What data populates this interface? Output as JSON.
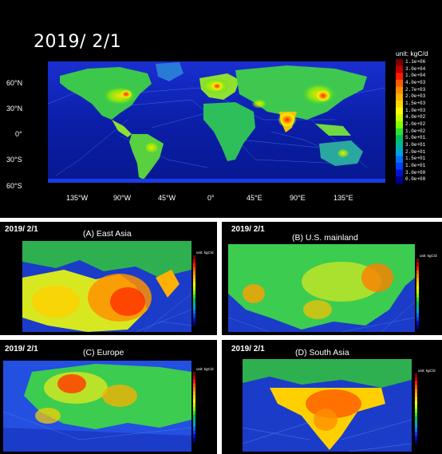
{
  "main": {
    "date": "2019/ 2/1",
    "unit": "unit: kgC/d",
    "lat_labels": [
      "60°N",
      "30°N",
      "0°",
      "30°S",
      "60°S"
    ],
    "lon_labels": [
      "135°W",
      "90°W",
      "45°W",
      "0°",
      "45°E",
      "90°E",
      "135°E"
    ],
    "colorbar": {
      "labels": [
        "1.1e+06",
        "3.0e+04",
        "1.0e+04",
        "4.0e+03",
        "2.7e+03",
        "2.0e+03",
        "1.5e+03",
        "1.0e+03",
        "4.0e+02",
        "2.0e+02",
        "1.0e+02",
        "5.0e+01",
        "3.0e+01",
        "2.0e+01",
        "1.5e+01",
        "1.0e+01",
        "3.0e+00",
        "0.0e+00"
      ],
      "colors": [
        "#7a0000",
        "#c40000",
        "#ff1a00",
        "#ff5a00",
        "#ff8c00",
        "#ffb400",
        "#ffd700",
        "#ffff00",
        "#c8ff00",
        "#80ff00",
        "#30e030",
        "#00c060",
        "#00b0a0",
        "#00a0e0",
        "#0070ff",
        "#0040ff",
        "#0010d0",
        "#00008a"
      ]
    }
  },
  "insets": [
    {
      "id": "a",
      "date": "2019/ 2/1",
      "title": "(A) East Asia",
      "unit": "unit: kgC/d"
    },
    {
      "id": "b",
      "date": "2019/ 2/1",
      "title": "(B) U.S. mainland",
      "unit": "unit: kgC/d"
    },
    {
      "id": "c",
      "date": "2019/ 2/1",
      "title": "(C) Europe",
      "unit": "unit: kgC/d"
    },
    {
      "id": "d",
      "date": "2019/ 2/1",
      "title": "(D) South Asia",
      "unit": "unit: kgC/d"
    }
  ]
}
